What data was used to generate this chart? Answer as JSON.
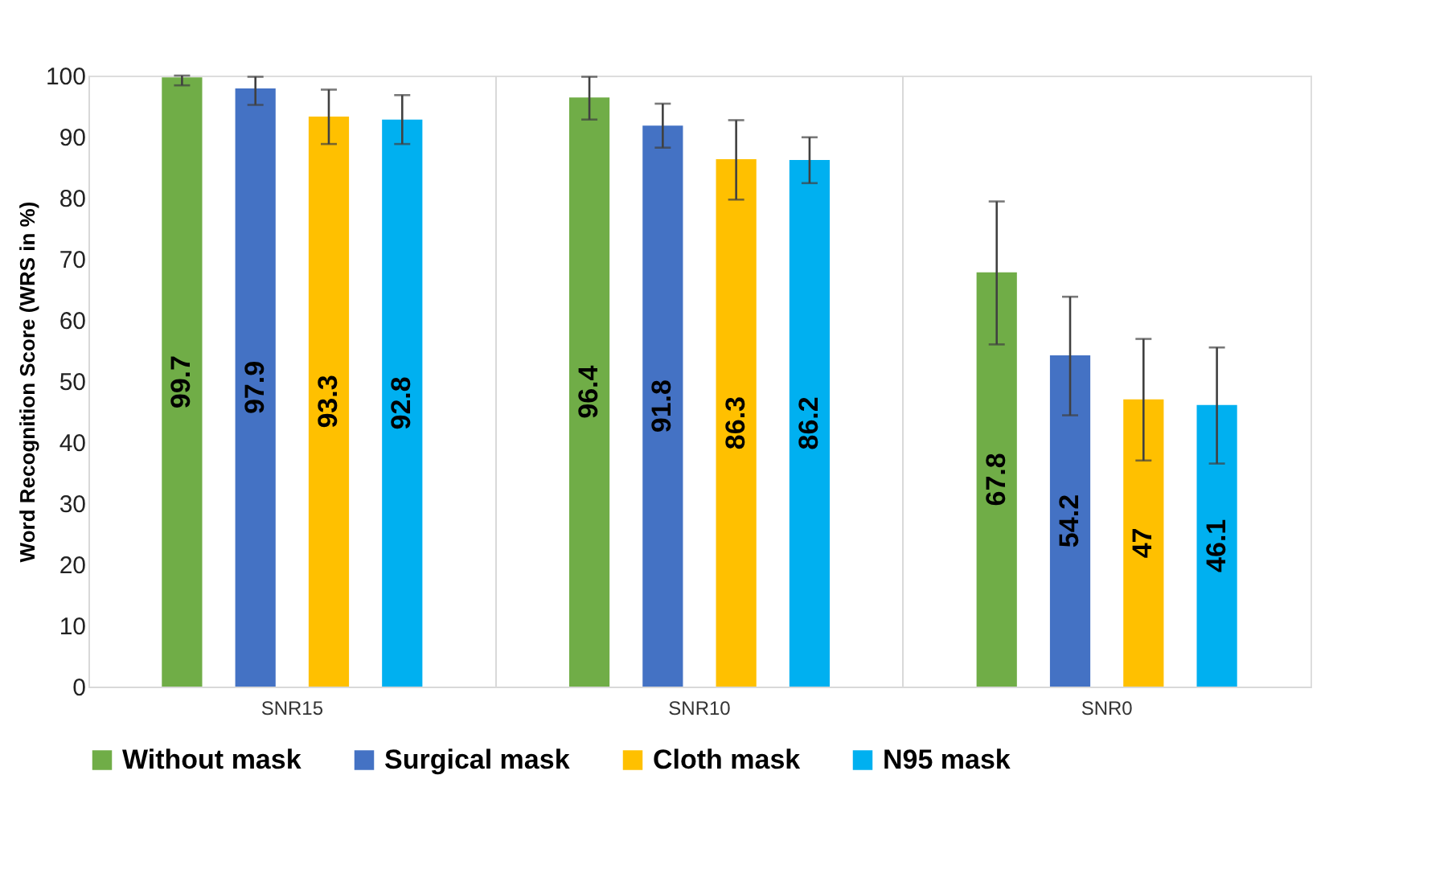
{
  "chart_data": {
    "type": "bar",
    "ylabel": "Word Recognition Score (WRS in %)",
    "categories": [
      "SNR15",
      "SNR10",
      "SNR0"
    ],
    "series": [
      {
        "name": "Without mask",
        "color": "#70ad47",
        "values": [
          99.7,
          96.4,
          67.8
        ],
        "errors": [
          [
            98.4,
            100
          ],
          [
            92.8,
            99.8
          ],
          [
            56.0,
            79.4
          ]
        ]
      },
      {
        "name": "Surgical mask",
        "color": "#4472c4",
        "values": [
          97.9,
          91.8,
          54.2
        ],
        "errors": [
          [
            95.2,
            99.8
          ],
          [
            88.2,
            95.4
          ],
          [
            44.4,
            63.8
          ]
        ]
      },
      {
        "name": "Cloth mask",
        "color": "#ffc000",
        "values": [
          93.3,
          86.3,
          47
        ],
        "errors": [
          [
            88.8,
            97.7
          ],
          [
            79.7,
            92.7
          ],
          [
            37.0,
            56.9
          ]
        ]
      },
      {
        "name": "N95 mask",
        "color": "#00b0f0",
        "values": [
          92.8,
          86.2,
          46.1
        ],
        "errors": [
          [
            88.8,
            96.8
          ],
          [
            82.4,
            89.9
          ],
          [
            36.5,
            55.5
          ]
        ]
      }
    ],
    "ylim": [
      0,
      100
    ],
    "yticks": [
      0,
      10,
      20,
      30,
      40,
      50,
      60,
      70,
      80,
      90,
      100
    ],
    "data_labels": true,
    "grid": "x",
    "legend": "bottom"
  }
}
